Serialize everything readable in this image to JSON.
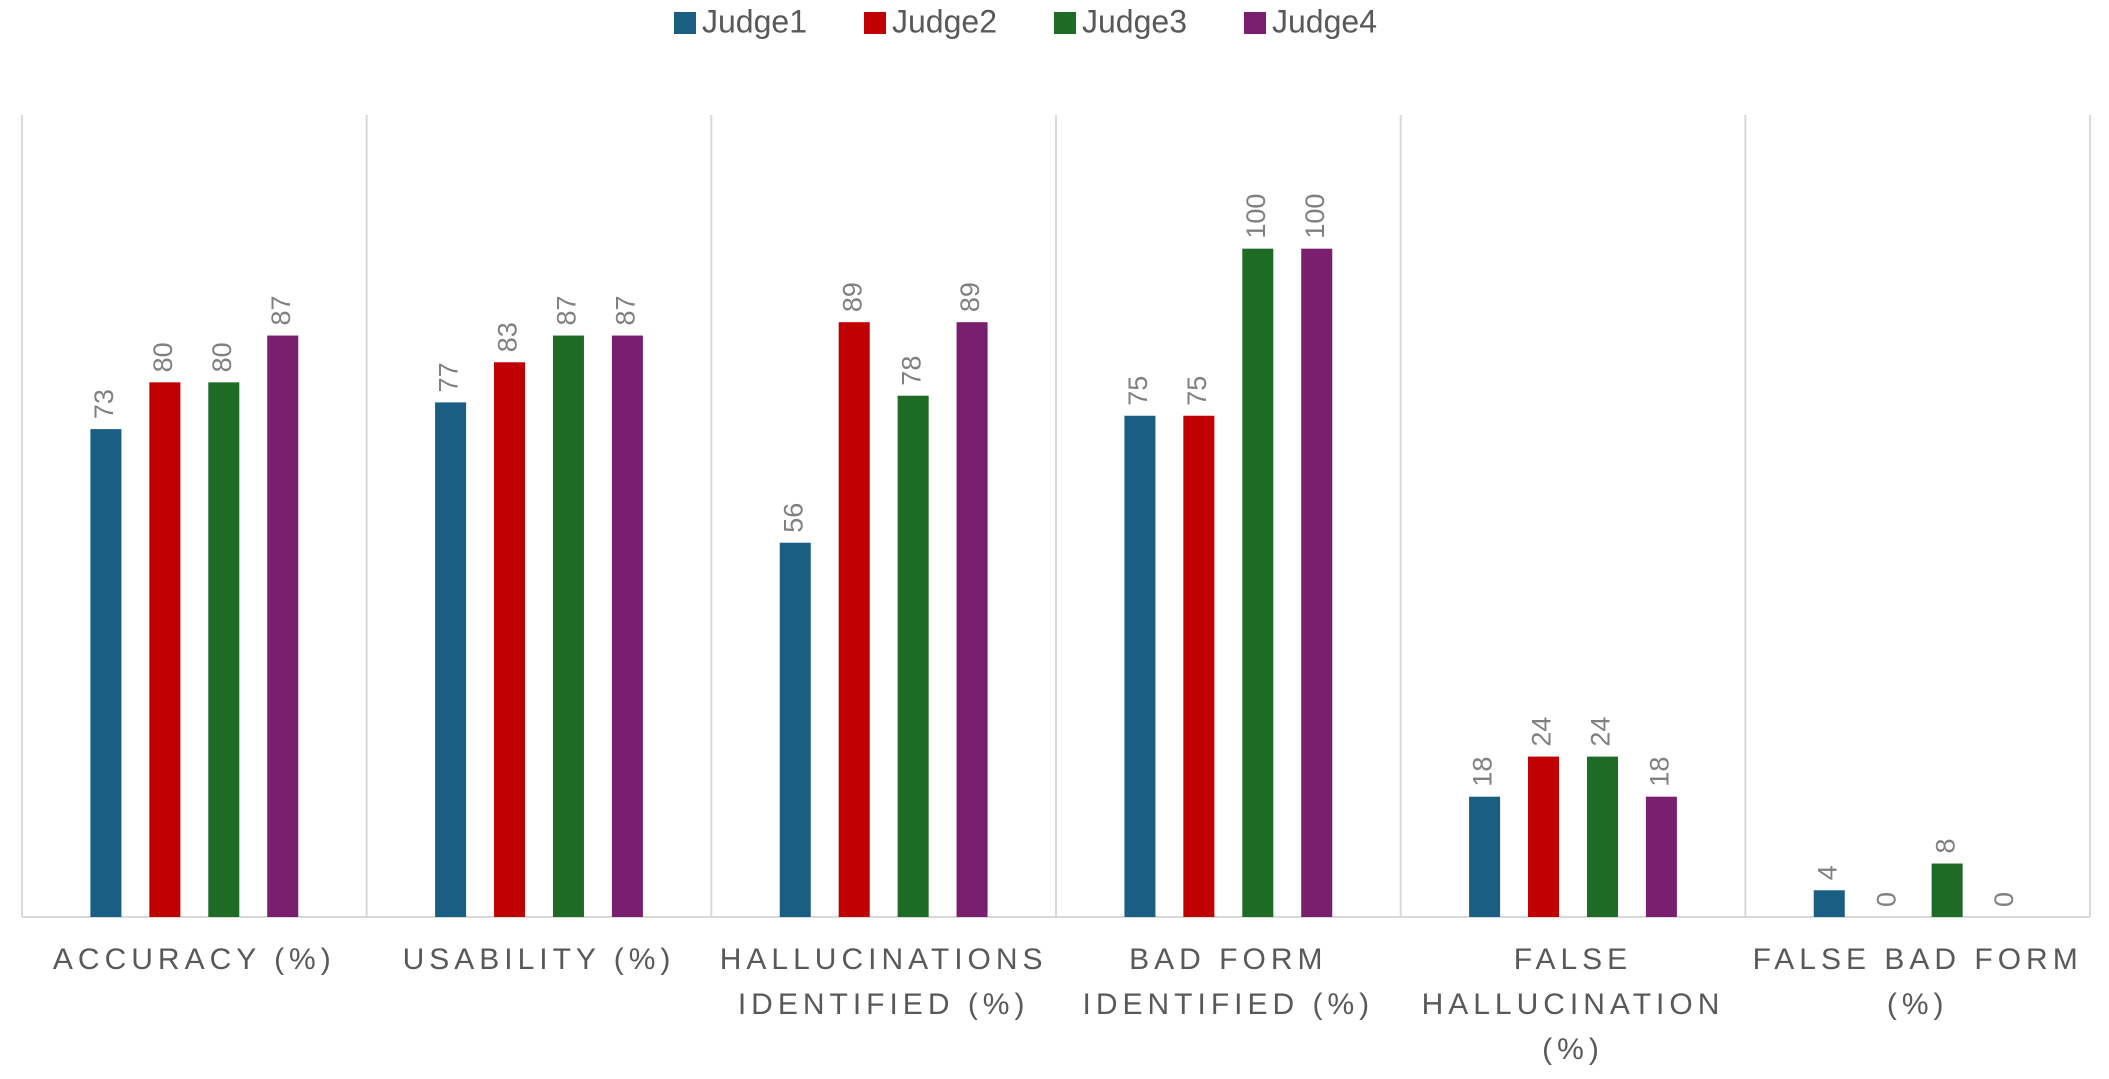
{
  "chart_data": {
    "type": "bar",
    "categories": [
      "ACCURACY (%)",
      "USABILITY (%)",
      "HALLUCINATIONS IDENTIFIED (%)",
      "BAD FORM IDENTIFIED (%)",
      "FALSE HALLUCINATION (%)",
      "FALSE BAD FORM (%)"
    ],
    "series": [
      {
        "name": "Judge1",
        "color": "#1b5e84",
        "values": [
          73,
          77,
          56,
          75,
          18,
          4
        ]
      },
      {
        "name": "Judge2",
        "color": "#c00000",
        "values": [
          80,
          83,
          89,
          75,
          24,
          0
        ]
      },
      {
        "name": "Judge3",
        "color": "#1e6b26",
        "values": [
          80,
          87,
          78,
          100,
          24,
          8
        ]
      },
      {
        "name": "Judge4",
        "color": "#7a1f6e",
        "values": [
          87,
          87,
          89,
          100,
          18,
          0
        ]
      }
    ],
    "ylim": [
      0,
      120
    ],
    "legend": "top"
  }
}
